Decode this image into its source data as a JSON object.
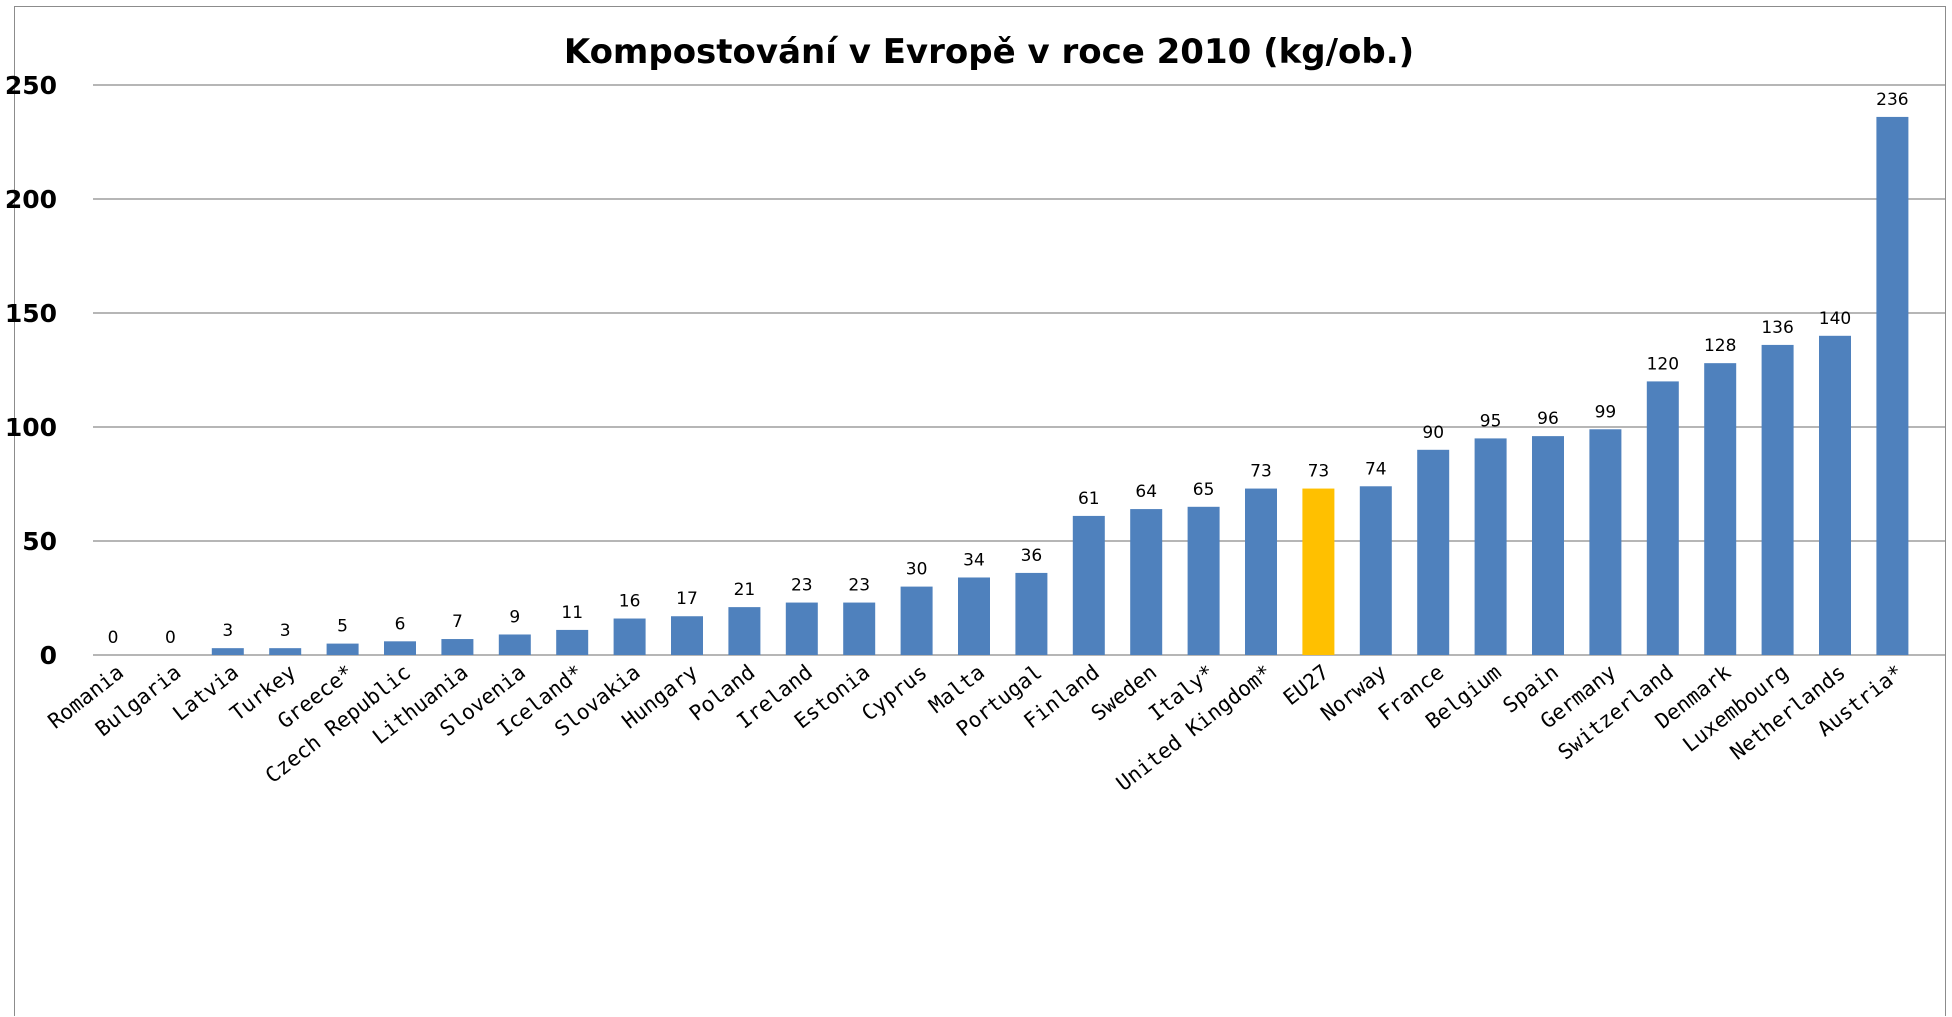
{
  "chart_data": {
    "type": "bar",
    "title": "Kompostování v Evropě v roce 2010 (kg/ob.)",
    "xlabel": "",
    "ylabel": "",
    "ylim": [
      0,
      250
    ],
    "yticks": [
      0,
      50,
      100,
      150,
      200,
      250
    ],
    "grid": true,
    "legend": "none",
    "colors": {
      "default": "#4f81bd",
      "highlight": "#ffc000"
    },
    "highlight_category": "EU27",
    "categories": [
      "Romania",
      "Bulgaria",
      "Latvia",
      "Turkey",
      "Greece*",
      "Czech Republic",
      "Lithuania",
      "Slovenia",
      "Iceland*",
      "Slovakia",
      "Hungary",
      "Poland",
      "Ireland",
      "Estonia",
      "Cyprus",
      "Malta",
      "Portugal",
      "Finland",
      "Sweden",
      "Italy*",
      "United Kingdom*",
      "EU27",
      "Norway",
      "France",
      "Belgium",
      "Spain",
      "Germany",
      "Switzerland",
      "Denmark",
      "Luxembourg",
      "Netherlands",
      "Austria*"
    ],
    "values": [
      0,
      0,
      3,
      3,
      5,
      6,
      7,
      9,
      11,
      16,
      17,
      21,
      23,
      23,
      30,
      34,
      36,
      61,
      64,
      65,
      73,
      73,
      74,
      90,
      95,
      96,
      99,
      120,
      128,
      136,
      140,
      236
    ]
  }
}
